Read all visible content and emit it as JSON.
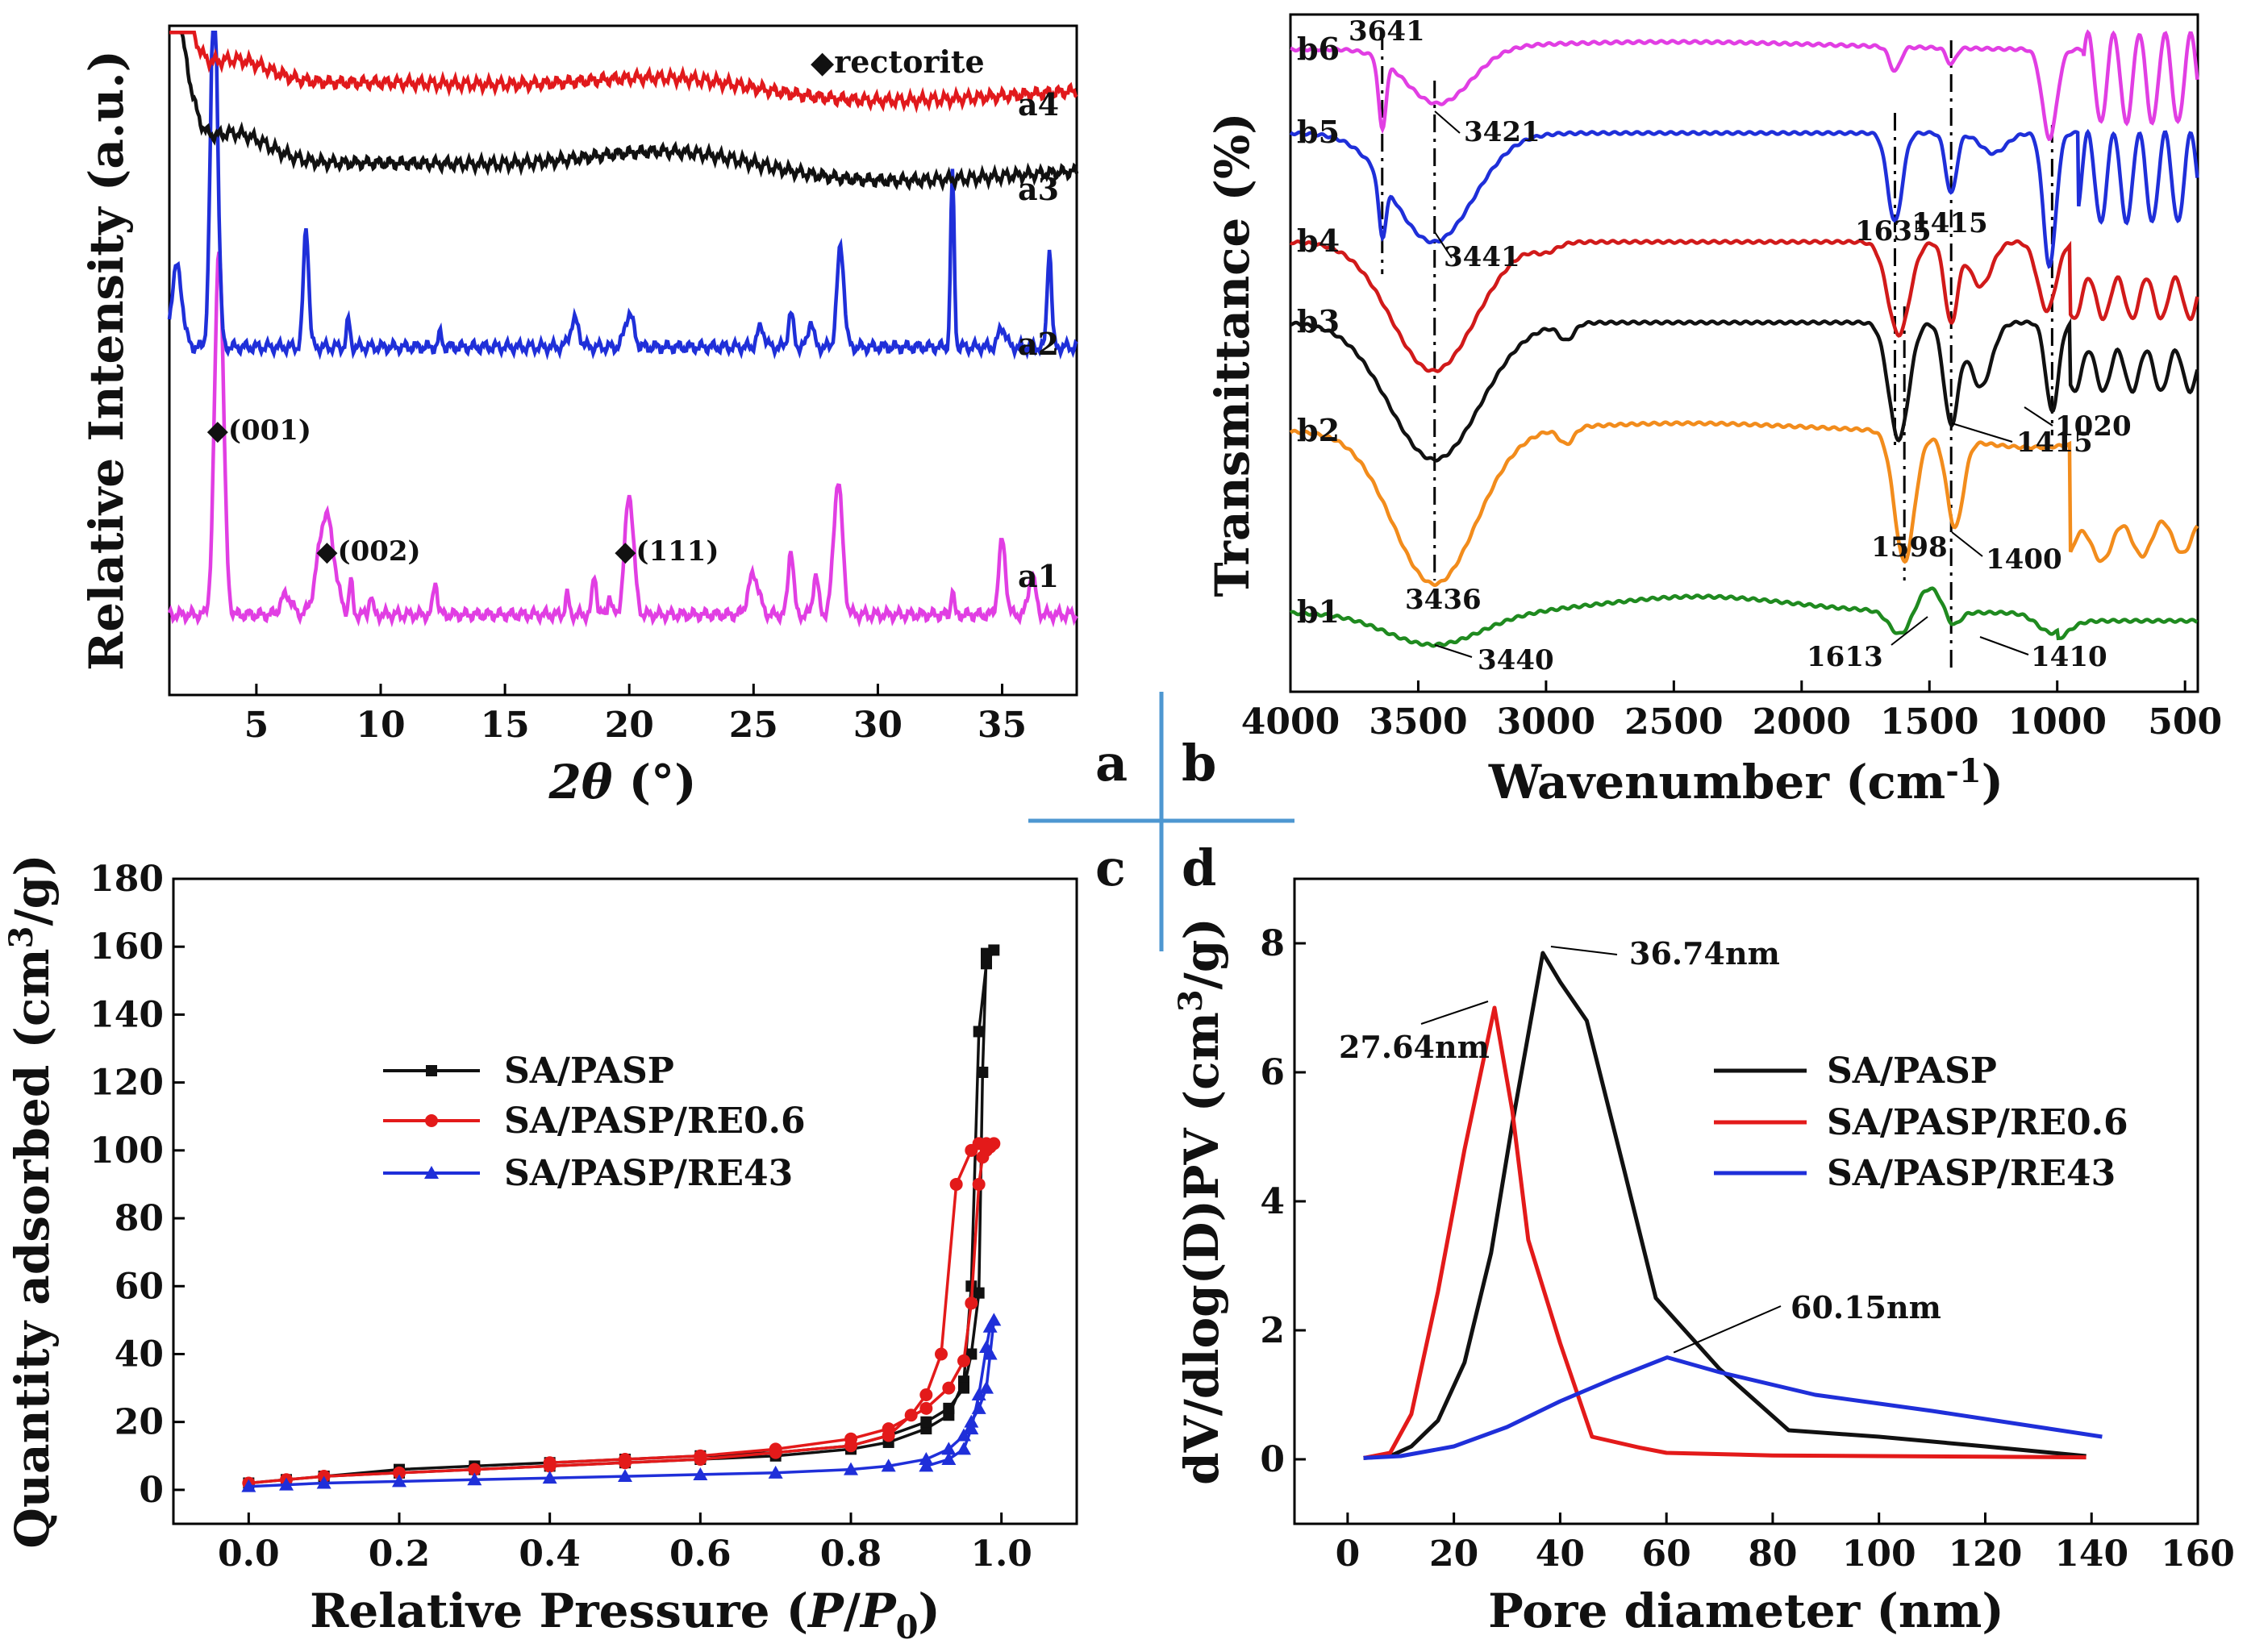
{
  "chart_data": [
    {
      "id": "a",
      "type": "line",
      "title": "",
      "xlabel": "2θ (°)",
      "ylabel": "Relative Intensity (a.u.)",
      "xlim": [
        1.5,
        38
      ],
      "xticks": [
        5,
        10,
        15,
        20,
        25,
        30,
        35
      ],
      "legend": "◆rectorite",
      "series": [
        {
          "name": "a1",
          "color": "#e13ee3",
          "baseline": 0.12,
          "peaks": [
            [
              3.5,
              0.55,
              0.25
            ],
            [
              6.2,
              0.03,
              0.3
            ],
            [
              7.8,
              0.15,
              0.45
            ],
            [
              8.8,
              0.05,
              0.1
            ],
            [
              9.6,
              0.03,
              0.1
            ],
            [
              12.2,
              0.05,
              0.12
            ],
            [
              17.5,
              0.03,
              0.1
            ],
            [
              18.6,
              0.06,
              0.12
            ],
            [
              19.2,
              0.03,
              0.1
            ],
            [
              20.0,
              0.18,
              0.25
            ],
            [
              25.0,
              0.06,
              0.3
            ],
            [
              26.5,
              0.1,
              0.15
            ],
            [
              27.5,
              0.06,
              0.15
            ],
            [
              28.4,
              0.2,
              0.25
            ],
            [
              33.0,
              0.04,
              0.08
            ],
            [
              35.0,
              0.11,
              0.2
            ],
            [
              36.2,
              0.06,
              0.2
            ]
          ]
        },
        {
          "name": "a2",
          "color": "#1f2fd9",
          "baseline": 0.52,
          "peaks": [
            [
              1.8,
              0.12,
              0.3
            ],
            [
              3.3,
              0.55,
              0.2
            ],
            [
              7.0,
              0.18,
              0.15
            ],
            [
              8.7,
              0.04,
              0.1
            ],
            [
              12.4,
              0.02,
              0.1
            ],
            [
              17.8,
              0.04,
              0.25
            ],
            [
              20.0,
              0.05,
              0.25
            ],
            [
              25.3,
              0.03,
              0.2
            ],
            [
              26.5,
              0.05,
              0.15
            ],
            [
              27.3,
              0.04,
              0.15
            ],
            [
              28.5,
              0.15,
              0.2
            ],
            [
              33.0,
              0.26,
              0.1
            ],
            [
              35.0,
              0.03,
              0.2
            ],
            [
              36.9,
              0.15,
              0.12
            ]
          ]
        },
        {
          "name": "a3",
          "color": "#111111",
          "baseline": 0.78,
          "peaks": [
            [
              1.5,
              0.25,
              0.9
            ],
            [
              4.0,
              0.05,
              2.0
            ],
            [
              22.0,
              0.04,
              5.0
            ]
          ]
        },
        {
          "name": "a4",
          "color": "#e1191c",
          "baseline": 0.9,
          "peaks": [
            [
              1.5,
              0.2,
              0.9
            ],
            [
              4.0,
              0.04,
              2.0
            ],
            [
              22.0,
              0.03,
              5.0
            ]
          ]
        }
      ],
      "annotations": [
        {
          "text": "◆(001)",
          "x": 3.6
        },
        {
          "text": "◆(002)",
          "x": 8.0
        },
        {
          "text": "◆(111)",
          "x": 20.0
        }
      ]
    },
    {
      "id": "b",
      "type": "line",
      "title": "",
      "xlabel": "Wavenumber (cm⁻¹)",
      "ylabel": "Transmittance (%)",
      "xlim": [
        4000,
        450
      ],
      "xticks": [
        4000,
        3500,
        3000,
        2500,
        2000,
        1500,
        1000,
        500
      ],
      "series": [
        {
          "name": "b1",
          "color": "#1f8a1f"
        },
        {
          "name": "b2",
          "color": "#f28c1c"
        },
        {
          "name": "b3",
          "color": "#111111"
        },
        {
          "name": "b4",
          "color": "#d11a1a"
        },
        {
          "name": "b5",
          "color": "#1f2fd9"
        },
        {
          "name": "b6",
          "color": "#e13ee3"
        }
      ],
      "guides": [
        3641,
        3436,
        1635,
        1598,
        1415,
        1020
      ],
      "annotations": [
        "3641",
        "3421",
        "3441",
        "3436",
        "3440",
        "1635",
        "1415",
        "1415",
        "1598",
        "1400",
        "1613",
        "1410",
        "1020"
      ]
    },
    {
      "id": "c",
      "type": "line",
      "title": "",
      "xlabel": "Relative Pressure (P/P0)",
      "ylabel": "Quantity adsorbed (cm3/g)",
      "xlim": [
        -0.1,
        1.1
      ],
      "ylim": [
        -10,
        180
      ],
      "xticks": [
        "0.0",
        "0.2",
        "0.4",
        "0.6",
        "0.8",
        "1.0"
      ],
      "yticks": [
        0,
        20,
        40,
        60,
        80,
        100,
        120,
        140,
        160,
        180
      ],
      "series": [
        {
          "name": "SA/PASP",
          "color": "#111111",
          "marker": "square",
          "x": [
            0.0,
            0.05,
            0.1,
            0.2,
            0.3,
            0.4,
            0.5,
            0.6,
            0.7,
            0.8,
            0.85,
            0.9,
            0.93,
            0.95,
            0.96,
            0.97,
            0.98,
            0.99,
            0.98,
            0.975,
            0.97,
            0.96,
            0.95,
            0.93,
            0.9,
            0.85,
            0.8,
            0.7,
            0.6,
            0.5,
            0.4,
            0.3,
            0.2,
            0.1
          ],
          "y": [
            2,
            3,
            4,
            5,
            6,
            7,
            8,
            9,
            10,
            12,
            14,
            18,
            22,
            32,
            60,
            135,
            155,
            159,
            158,
            123,
            58,
            40,
            30,
            24,
            20,
            16,
            13,
            11,
            10,
            9,
            8,
            7,
            6,
            4
          ]
        },
        {
          "name": "SA/PASP/RE0.6",
          "color": "#e31a1a",
          "marker": "circle",
          "x": [
            0.0,
            0.05,
            0.1,
            0.2,
            0.3,
            0.4,
            0.5,
            0.6,
            0.7,
            0.8,
            0.85,
            0.88,
            0.9,
            0.92,
            0.94,
            0.96,
            0.97,
            0.98,
            0.99,
            0.985,
            0.98,
            0.975,
            0.97,
            0.96,
            0.95,
            0.93,
            0.9,
            0.85,
            0.8,
            0.7,
            0.6,
            0.5,
            0.4
          ],
          "y": [
            2,
            3,
            4,
            5,
            6,
            7,
            8,
            9,
            11,
            13,
            16,
            22,
            28,
            40,
            90,
            100,
            102,
            102,
            102,
            101,
            100,
            98,
            90,
            55,
            38,
            30,
            24,
            18,
            15,
            12,
            10,
            9,
            8
          ]
        },
        {
          "name": "SA/PASP/RE43",
          "color": "#1f2fd9",
          "marker": "triangle",
          "x": [
            0.0,
            0.05,
            0.1,
            0.2,
            0.3,
            0.4,
            0.5,
            0.6,
            0.7,
            0.8,
            0.85,
            0.9,
            0.93,
            0.95,
            0.96,
            0.97,
            0.98,
            0.985,
            0.99,
            0.985,
            0.98,
            0.97,
            0.96,
            0.95,
            0.93,
            0.9
          ],
          "y": [
            1,
            1.5,
            2,
            2.5,
            3,
            3.5,
            4,
            4.5,
            5,
            6,
            7,
            9,
            12,
            16,
            20,
            24,
            30,
            40,
            50,
            48,
            42,
            28,
            18,
            12,
            9,
            7
          ]
        }
      ]
    },
    {
      "id": "d",
      "type": "line",
      "title": "",
      "xlabel": "Pore diameter (nm)",
      "ylabel": "dV/dlog(D)PV (cm3/g)",
      "xlim": [
        -10,
        160
      ],
      "ylim": [
        -1,
        9
      ],
      "xticks": [
        0,
        20,
        40,
        60,
        80,
        100,
        120,
        140,
        160
      ],
      "yticks": [
        0,
        2,
        4,
        6,
        8
      ],
      "series": [
        {
          "name": "SA/PASP",
          "color": "#111111",
          "x": [
            3,
            8,
            12,
            17,
            22,
            27,
            31,
            36.74,
            40,
            45,
            52,
            58,
            70,
            83,
            100,
            120,
            139
          ],
          "y": [
            0.02,
            0.05,
            0.2,
            0.6,
            1.5,
            3.2,
            5.2,
            7.85,
            7.4,
            6.8,
            4.5,
            2.5,
            1.4,
            0.45,
            0.35,
            0.2,
            0.05
          ]
        },
        {
          "name": "SA/PASP/RE0.6",
          "color": "#e31a1a",
          "x": [
            3,
            8,
            12,
            17,
            22,
            27.64,
            31,
            34,
            40,
            46,
            55,
            60,
            80,
            100,
            120,
            139
          ],
          "y": [
            0.02,
            0.1,
            0.7,
            2.6,
            4.8,
            7.0,
            5.4,
            3.4,
            1.8,
            0.35,
            0.18,
            0.1,
            0.06,
            0.05,
            0.04,
            0.03
          ]
        },
        {
          "name": "SA/PASP/RE43",
          "color": "#1f2fd9",
          "x": [
            3,
            10,
            20,
            30,
            40,
            50,
            60.15,
            70,
            88,
            110,
            130,
            142
          ],
          "y": [
            0.02,
            0.05,
            0.2,
            0.5,
            0.9,
            1.25,
            1.58,
            1.35,
            1.0,
            0.75,
            0.5,
            0.35
          ]
        }
      ],
      "annotations": [
        {
          "text": "36.74nm",
          "x": 36.74,
          "y": 7.85
        },
        {
          "text": "27.64nm",
          "x": 27.64,
          "y": 7.0
        },
        {
          "text": "60.15nm",
          "x": 60.15,
          "y": 1.58
        }
      ]
    }
  ],
  "panel_labels": {
    "a": "a",
    "b": "b",
    "c": "c",
    "d": "d"
  },
  "divider_color": "#4e97d1"
}
